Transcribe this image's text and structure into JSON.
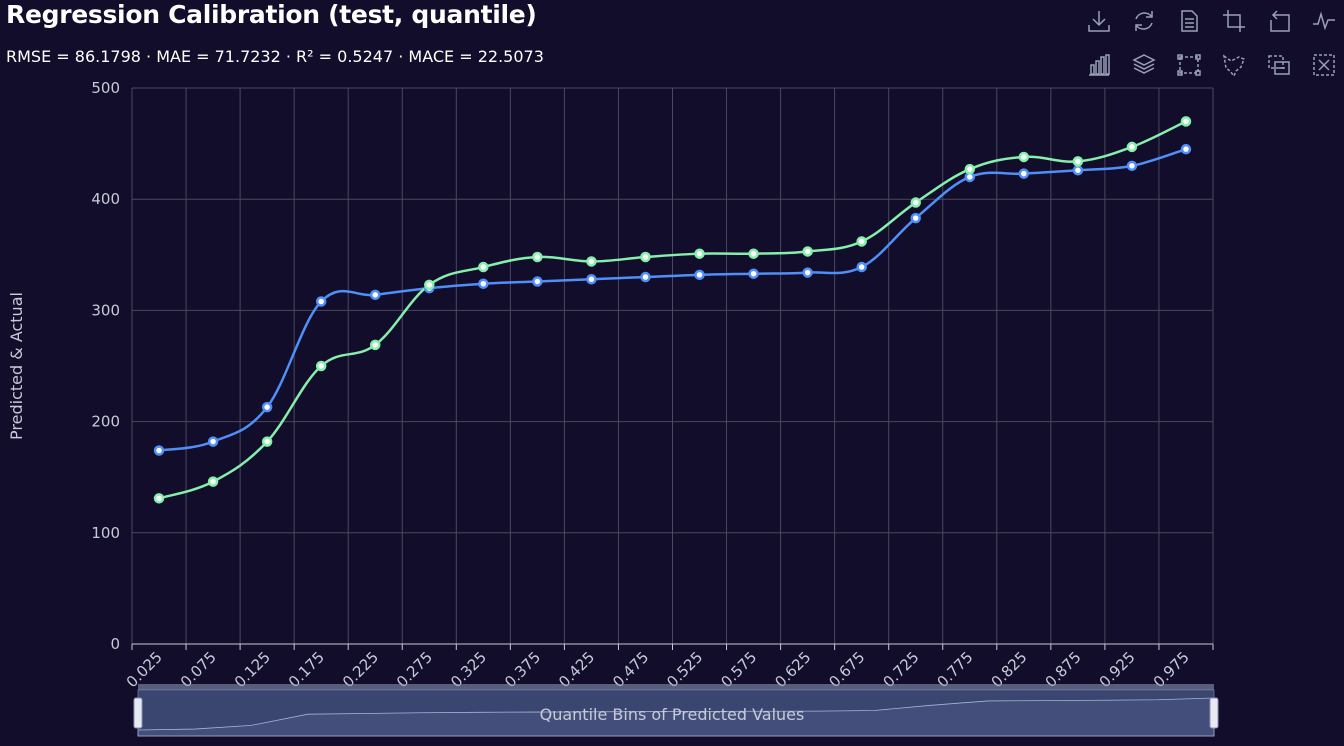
{
  "title": "Regression Calibration (test, quantile)",
  "subtitle": "RMSE = 86.1798 · MAE = 71.7232 · R² = 0.5247 · MACE = 22.5073",
  "toolbar_icons": [
    "download-icon",
    "refresh-icon",
    "document-icon",
    "crop-icon",
    "undo-icon",
    "pulse-icon",
    "bar-chart-icon",
    "layers-icon",
    "rect-select-icon",
    "lasso-select-icon",
    "keep-selection-icon",
    "clear-selection-icon"
  ],
  "colors": {
    "background": "#110d2a",
    "predicted": "#4f8ff7",
    "actual": "#86efac",
    "grid": "#4a4a5e",
    "slider_fill": "#3a4670"
  },
  "chart_data": {
    "type": "line",
    "xlabel": "Quantile Bins of Predicted Values",
    "ylabel": "Predicted & Actual",
    "ylim": [
      0,
      500
    ],
    "yticks": [
      "0",
      "100",
      "200",
      "300",
      "400",
      "500"
    ],
    "categories": [
      "0.025",
      "0.075",
      "0.125",
      "0.175",
      "0.225",
      "0.275",
      "0.325",
      "0.375",
      "0.425",
      "0.475",
      "0.525",
      "0.575",
      "0.625",
      "0.675",
      "0.725",
      "0.775",
      "0.825",
      "0.875",
      "0.925",
      "0.975"
    ],
    "grid": true,
    "smooth": true,
    "series": [
      {
        "values": [
          174,
          182,
          213,
          308,
          314,
          320,
          324,
          326,
          328,
          330,
          332,
          333,
          334,
          339,
          383,
          420,
          423,
          426,
          430,
          445
        ]
      },
      {
        "values": [
          131,
          146,
          182,
          250,
          269,
          323,
          339,
          348,
          344,
          348,
          351,
          351,
          353,
          362,
          397,
          427,
          438,
          434,
          447,
          470
        ]
      }
    ]
  }
}
